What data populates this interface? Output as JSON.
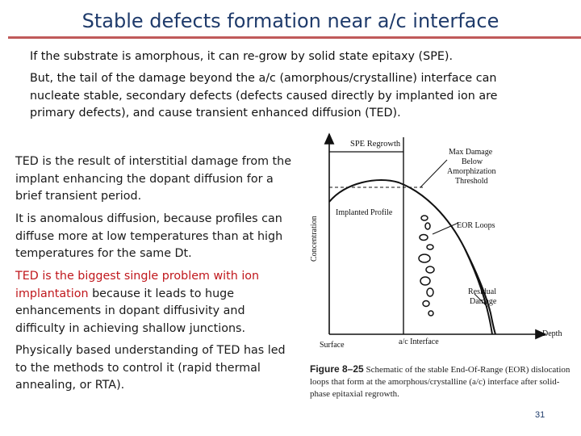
{
  "slide": {
    "title": "Stable defects formation near a/c interface",
    "page_number": "31"
  },
  "intro": {
    "para1": "If the substrate is amorphous, it can re-grow by solid state epitaxy (SPE).",
    "para2": "But, the tail of the damage beyond the a/c (amorphous/crystalline) interface can nucleate stable, secondary defects (defects caused directly by implanted ion are primary defects), and cause transient enhanced diffusion (TED)."
  },
  "bullets": {
    "b1": "TED is the result of interstitial damage from the implant enhancing the dopant diffusion for a brief transient period.",
    "b2": "It is anomalous diffusion, because profiles can diffuse more at low temperatures than at high temperatures for the same Dt.",
    "b3_red": "TED is the biggest single problem with ion implantation",
    "b3_rest": " because it leads to huge enhancements in dopant diffusivity and difficulty in achieving shallow junctions.",
    "b4": "Physically based understanding of TED has led to the methods to control it (rapid thermal annealing, or RTA)."
  },
  "figure": {
    "labels": {
      "spe_regrowth": "SPE Regrowth",
      "max_damage_1": "Max Damage",
      "max_damage_2": "Below",
      "max_damage_3": "Amorphization",
      "max_damage_4": "Threshold",
      "implanted_profile": "Implanted Profile",
      "eor_loops": "EOR Loops",
      "residual_1": "Residual",
      "residual_2": "Damage",
      "concentration": "Concentration",
      "depth": "Depth",
      "surface": "Surface",
      "ac_interface": "a/c Interface"
    },
    "caption_number": "Figure 8–25",
    "caption_text": " Schematic of the stable End-Of-Range (EOR) dislocation loops that form at the amorphous/crystalline (a/c) interface after solid-phase epitaxial regrowth."
  }
}
